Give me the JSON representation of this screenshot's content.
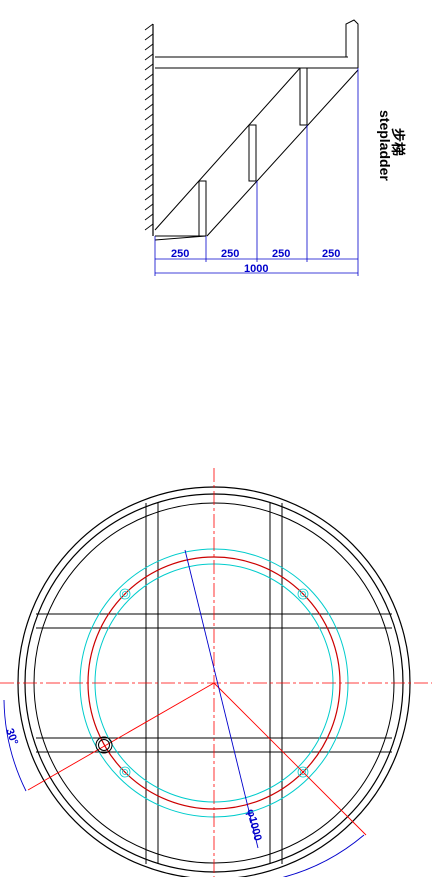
{
  "stepladder": {
    "title_cn": "步梯",
    "title_en": "stepladder",
    "segment_dims": [
      "250",
      "250",
      "250",
      "250"
    ],
    "total_dim": "1000"
  },
  "plan": {
    "angle_label": "30°",
    "diameter_label": "φ1000"
  },
  "colors": {
    "outline": "#000000",
    "dimension": "#0000cc",
    "centerline": "#ff0000",
    "ring_red": "#cc0000",
    "ring_cyan": "#00cccc"
  }
}
